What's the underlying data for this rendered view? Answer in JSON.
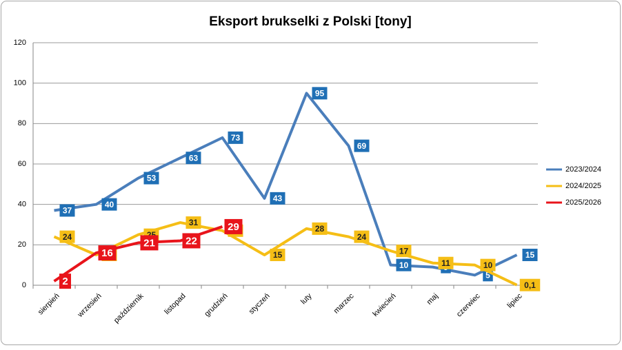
{
  "chart_data": {
    "type": "line",
    "title": "Eksport brukselki z Polski [tony]",
    "categories": [
      "sierpień",
      "wrzesień",
      "październik",
      "listopad",
      "grudzień",
      "styczeń",
      "luty",
      "marzec",
      "kwiecień",
      "maj",
      "czerwiec",
      "lipiec"
    ],
    "series": [
      {
        "name": "2023/2024",
        "color": "#4a7ebb",
        "label_color": "#1f6fb5",
        "label_text_color": "#ffffff",
        "values": [
          37,
          40,
          53,
          63,
          73,
          43,
          95,
          69,
          10,
          9,
          5,
          15
        ]
      },
      {
        "name": "2024/2025",
        "color": "#f5be16",
        "label_color": "#f5be16",
        "label_text_color": "#222222",
        "values": [
          24,
          15,
          25,
          31,
          27,
          15,
          28,
          24,
          17,
          11,
          10,
          0.1
        ],
        "value_labels": [
          "24",
          "15",
          "25",
          "31",
          "27",
          "15",
          "28",
          "24",
          "17",
          "11",
          "10",
          "0,1"
        ]
      },
      {
        "name": "2025/2026",
        "color": "#e8141b",
        "label_color": "#e8141b",
        "label_text_color": "#ffffff",
        "values": [
          2,
          16,
          21,
          22,
          29,
          null,
          null,
          null,
          null,
          null,
          null,
          null
        ]
      }
    ],
    "ylim": [
      0,
      120
    ],
    "yticks": [
      0,
      20,
      40,
      60,
      80,
      100,
      120
    ],
    "grid": true,
    "legend": "right"
  }
}
